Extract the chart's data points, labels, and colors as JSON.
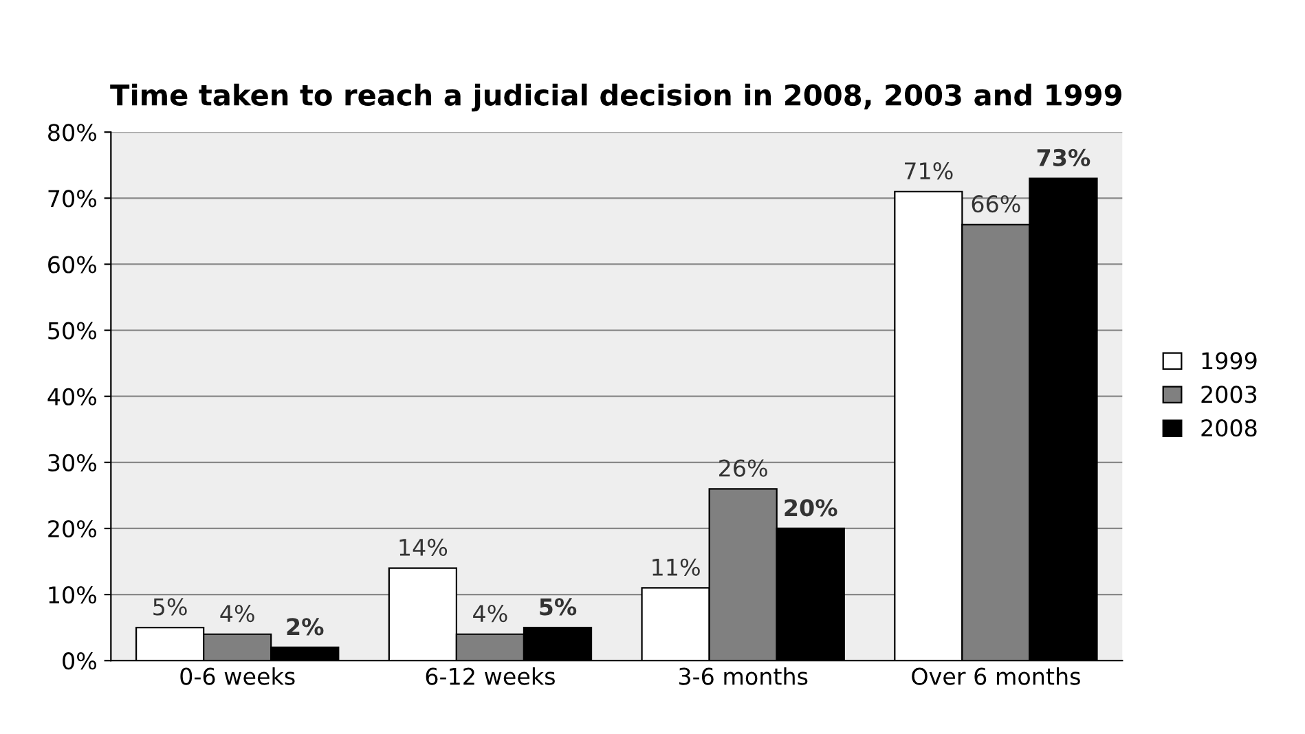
{
  "chart_data": {
    "type": "bar",
    "title": "Time taken to reach a judicial decision in 2008, 2003 and 1999",
    "categories": [
      "0-6 weeks",
      "6-12 weeks",
      "3-6 months",
      "Over 6 months"
    ],
    "series": [
      {
        "name": "1999",
        "color": "#ffffff",
        "values": [
          5,
          14,
          11,
          71
        ],
        "value_labels": [
          "5%",
          "14%",
          "11%",
          "71%"
        ]
      },
      {
        "name": "2003",
        "color": "#808080",
        "values": [
          4,
          4,
          26,
          66
        ],
        "value_labels": [
          "4%",
          "4%",
          "26%",
          "66%"
        ]
      },
      {
        "name": "2008",
        "color": "#000000",
        "values": [
          2,
          5,
          20,
          73
        ],
        "value_labels": [
          "2%",
          "5%",
          "20%",
          "73%"
        ]
      }
    ],
    "ylim": [
      0,
      80
    ],
    "yticks": [
      {
        "value": 0,
        "label": "0%"
      },
      {
        "value": 10,
        "label": "10%"
      },
      {
        "value": 20,
        "label": "20%"
      },
      {
        "value": 30,
        "label": "30%"
      },
      {
        "value": 40,
        "label": "40%"
      },
      {
        "value": 50,
        "label": "50%"
      },
      {
        "value": 60,
        "label": "60%"
      },
      {
        "value": 70,
        "label": "70%"
      },
      {
        "value": 80,
        "label": "80%"
      }
    ],
    "grid": "y",
    "legend": "right"
  }
}
